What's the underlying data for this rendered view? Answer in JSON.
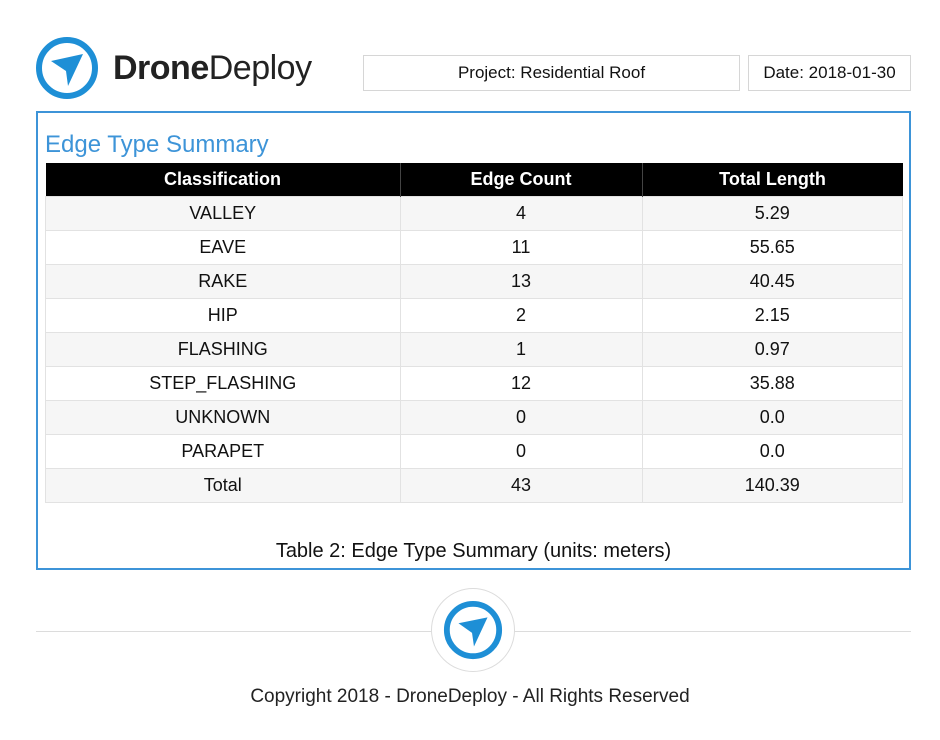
{
  "header": {
    "brand_bold": "Drone",
    "brand_light": "Deploy",
    "project": "Project: Residential Roof",
    "date": "Date: 2018-01-30",
    "logo_icon": "dronedeploy-logo-icon",
    "accent_color": "#3d94d8"
  },
  "section": {
    "title": "Edge Type Summary",
    "caption": "Table 2: Edge Type Summary (units: meters)"
  },
  "table": {
    "headers": [
      "Classification",
      "Edge Count",
      "Total Length"
    ],
    "rows": [
      [
        "VALLEY",
        "4",
        "5.29"
      ],
      [
        "EAVE",
        "11",
        "55.65"
      ],
      [
        "RAKE",
        "13",
        "40.45"
      ],
      [
        "HIP",
        "2",
        "2.15"
      ],
      [
        "FLASHING",
        "1",
        "0.97"
      ],
      [
        "STEP_FLASHING",
        "12",
        "35.88"
      ],
      [
        "UNKNOWN",
        "0",
        "0.0"
      ],
      [
        "PARAPET",
        "0",
        "0.0"
      ],
      [
        "Total",
        "43",
        "140.39"
      ]
    ]
  },
  "footer": {
    "copyright": "Copyright 2018 - DroneDeploy - All Rights Reserved"
  }
}
